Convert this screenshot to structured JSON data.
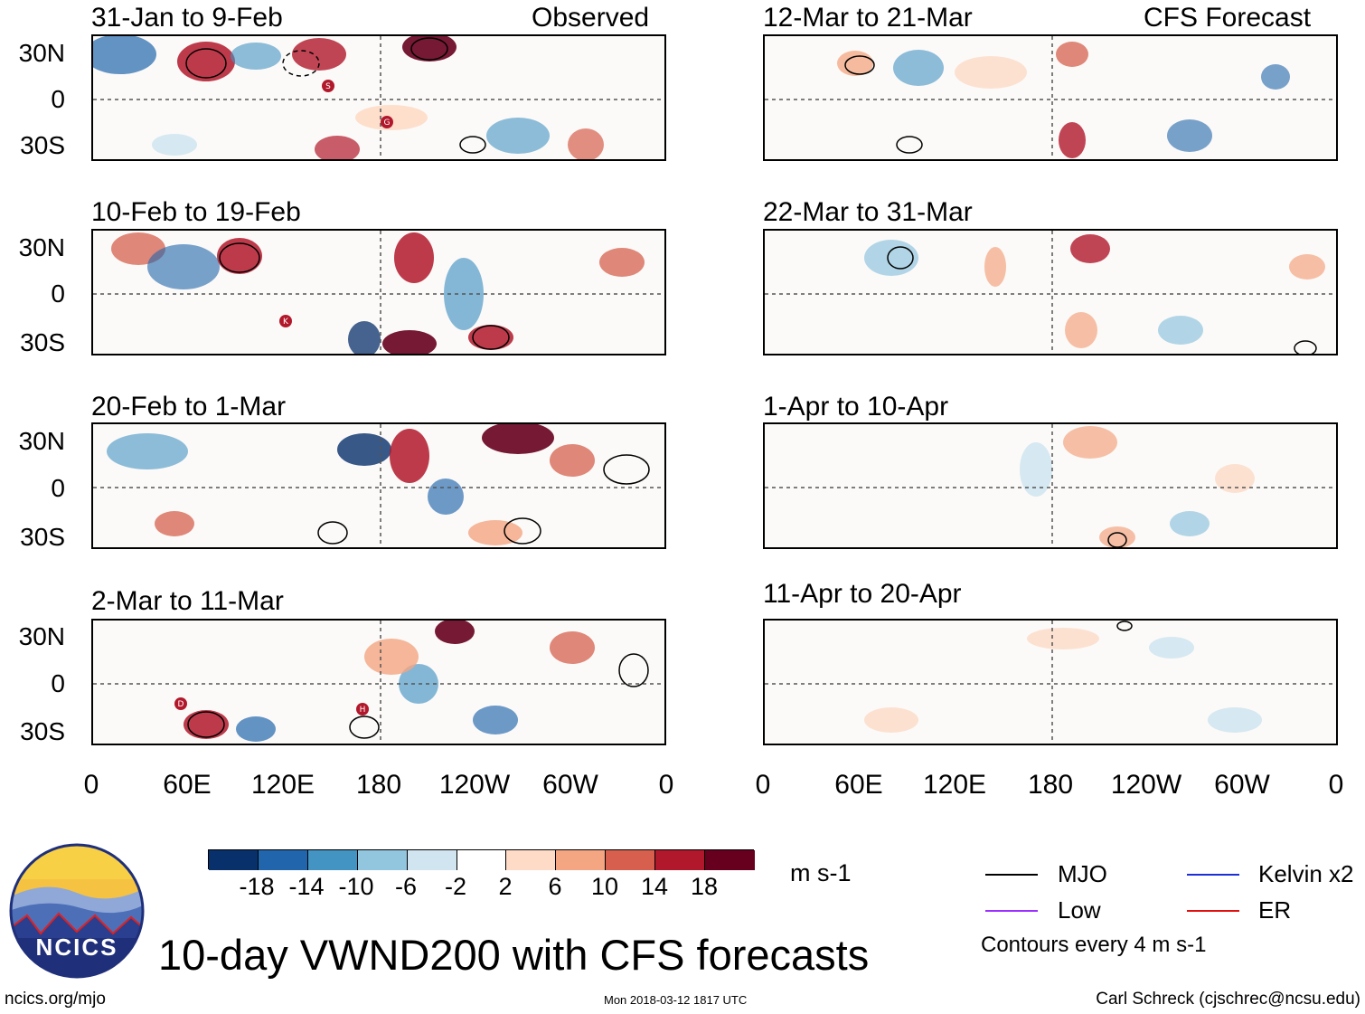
{
  "panels_observed": {
    "header_right": "Observed",
    "titles": [
      "31-Jan to 9-Feb",
      "10-Feb to 19-Feb",
      "20-Feb to 1-Mar",
      "2-Mar to 11-Mar"
    ]
  },
  "panels_forecast": {
    "header_right": "CFS Forecast",
    "titles": [
      "12-Mar to 21-Mar",
      "22-Mar to 31-Mar",
      "1-Apr to 10-Apr",
      "11-Apr to 20-Apr"
    ]
  },
  "lat_labels": [
    "30N",
    "0",
    "30S"
  ],
  "lon_labels": [
    "0",
    "60E",
    "120E",
    "180",
    "120W",
    "60W",
    "0"
  ],
  "storm_markers": [
    "S",
    "G",
    "K",
    "D",
    "H"
  ],
  "colorbar": {
    "labels": [
      "-18",
      "-14",
      "-10",
      "-6",
      "-2",
      "2",
      "6",
      "10",
      "14",
      "18"
    ],
    "units": "m s-1",
    "colors": [
      "#08306b",
      "#2166ac",
      "#4393c3",
      "#92c5de",
      "#d1e5f0",
      "#ffffff",
      "#fddbc7",
      "#f4a582",
      "#d6604d",
      "#b2182b",
      "#67001f"
    ]
  },
  "legend": {
    "items": [
      {
        "label": "MJO",
        "color": "#000000"
      },
      {
        "label": "Kelvin x2",
        "color": "#1c2fd8"
      },
      {
        "label": "Low",
        "color": "#9b30ff"
      },
      {
        "label": "ER",
        "color": "#e01010"
      }
    ],
    "note": "Contours every 4 m s-1"
  },
  "logo": {
    "text": "NCICS"
  },
  "main_title": "10-day VWND200 with CFS forecasts",
  "footer": {
    "left": "ncics.org/mjo",
    "center": "Mon 2018-03-12 1817 UTC",
    "right": "Carl Schreck (cjschrec@ncsu.edu)"
  }
}
